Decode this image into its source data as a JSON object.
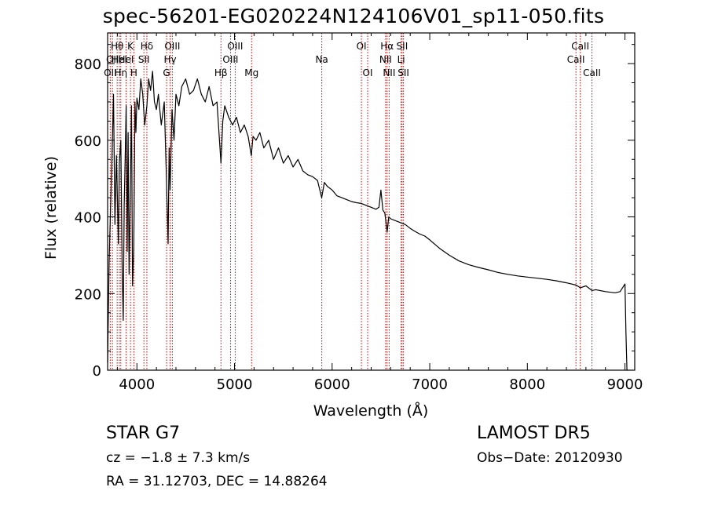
{
  "title": "spec-56201-EG020224N124106V01_sp11-050.fits",
  "footer": {
    "star_type": "STAR    G7",
    "survey": "LAMOST  DR5",
    "cz": "cz = −1.8 ± 7.3 km/s",
    "obs_date": "Obs−Date: 20120930",
    "ra_dec": "RA =  31.12703, DEC =  14.88264"
  },
  "chart_data": {
    "type": "line",
    "title": "spec-56201-EG020224N124106V01_sp11-050.fits",
    "xlabel": "Wavelength (Å)",
    "ylabel": "Flux (relative)",
    "xlim": [
      3700,
      9100
    ],
    "ylim": [
      0,
      880
    ],
    "xticks": [
      4000,
      5000,
      6000,
      7000,
      8000,
      9000
    ],
    "yticks": [
      0,
      200,
      400,
      600,
      800
    ],
    "grid": false,
    "line_color": "#000000",
    "marker_line_color": "#cc0000",
    "series": [
      {
        "x": [
          3700,
          3715,
          3730,
          3745,
          3760,
          3775,
          3790,
          3800,
          3810,
          3820,
          3835,
          3850,
          3860,
          3870,
          3880,
          3890,
          3900,
          3910,
          3920,
          3933,
          3945,
          3955,
          3968,
          3980,
          3990,
          4000,
          4020,
          4040,
          4060,
          4080,
          4102,
          4120,
          4140,
          4160,
          4180,
          4200,
          4220,
          4250,
          4280,
          4300,
          4320,
          4330,
          4340,
          4360,
          4380,
          4400,
          4430,
          4460,
          4500,
          4540,
          4580,
          4620,
          4660,
          4700,
          4740,
          4780,
          4820,
          4861,
          4880,
          4900,
          4940,
          4980,
          5020,
          5060,
          5100,
          5140,
          5172,
          5190,
          5220,
          5260,
          5300,
          5350,
          5400,
          5450,
          5500,
          5550,
          5600,
          5650,
          5700,
          5750,
          5800,
          5850,
          5893,
          5920,
          5950,
          6000,
          6050,
          6100,
          6150,
          6200,
          6250,
          6300,
          6350,
          6400,
          6450,
          6480,
          6500,
          6520,
          6540,
          6563,
          6580,
          6600,
          6650,
          6700,
          6750,
          6800,
          6850,
          6900,
          6950,
          7000,
          7100,
          7200,
          7300,
          7400,
          7500,
          7600,
          7700,
          7800,
          7900,
          8000,
          8100,
          8200,
          8300,
          8400,
          8500,
          8542,
          8600,
          8662,
          8700,
          8800,
          8900,
          8950,
          9000,
          9010,
          9020,
          9030
        ],
        "y": [
          20,
          280,
          420,
          560,
          720,
          380,
          560,
          450,
          330,
          540,
          600,
          250,
          130,
          430,
          560,
          690,
          310,
          620,
          250,
          480,
          690,
          220,
          320,
          700,
          620,
          710,
          680,
          760,
          720,
          640,
          690,
          760,
          730,
          780,
          700,
          680,
          720,
          640,
          700,
          520,
          330,
          580,
          470,
          680,
          600,
          720,
          690,
          740,
          760,
          720,
          730,
          760,
          720,
          700,
          740,
          690,
          700,
          540,
          650,
          690,
          660,
          640,
          660,
          620,
          640,
          610,
          560,
          610,
          600,
          620,
          580,
          600,
          550,
          580,
          540,
          560,
          530,
          550,
          520,
          510,
          505,
          495,
          450,
          490,
          480,
          470,
          455,
          450,
          445,
          440,
          437,
          435,
          430,
          425,
          420,
          425,
          470,
          418,
          410,
          360,
          400,
          395,
          390,
          385,
          380,
          370,
          362,
          355,
          350,
          340,
          318,
          300,
          285,
          275,
          268,
          262,
          255,
          250,
          246,
          243,
          240,
          237,
          233,
          228,
          222,
          215,
          220,
          208,
          210,
          205,
          202,
          205,
          225,
          100,
          0,
          0
        ]
      }
    ],
    "line_markers": [
      {
        "x": 3727,
        "label": "OII",
        "row": 2
      },
      {
        "x": 3750,
        "label": "OII",
        "row": 1
      },
      {
        "x": 3798,
        "label": "Hθ",
        "row": 0
      },
      {
        "x": 3820,
        "label": "HeI",
        "row": 1
      },
      {
        "x": 3835,
        "label": "Hη",
        "row": 2
      },
      {
        "x": 3889,
        "label": "HeI",
        "row": 1
      },
      {
        "x": 3934,
        "label": "K",
        "row": 0
      },
      {
        "x": 3969,
        "label": "H",
        "row": 2
      },
      {
        "x": 4072,
        "label": "SII",
        "row": 1
      },
      {
        "x": 4102,
        "label": "Hδ",
        "row": 0
      },
      {
        "x": 4304,
        "label": "G",
        "row": 2
      },
      {
        "x": 4340,
        "label": "Hγ",
        "row": 1
      },
      {
        "x": 4363,
        "label": "OIII",
        "row": 0
      },
      {
        "x": 4861,
        "label": "Hβ",
        "row": 2
      },
      {
        "x": 4959,
        "label": "OIII",
        "row": 1
      },
      {
        "x": 5007,
        "label": "OIII",
        "row": 0
      },
      {
        "x": 5175,
        "label": "Mg",
        "row": 2
      },
      {
        "x": 5894,
        "label": "Na",
        "row": 1
      },
      {
        "x": 6300,
        "label": "OI",
        "row": 0
      },
      {
        "x": 6364,
        "label": "OI",
        "row": 2
      },
      {
        "x": 6548,
        "label": "NII",
        "row": 1
      },
      {
        "x": 6563,
        "label": "Hα",
        "row": 0
      },
      {
        "x": 6584,
        "label": "NII",
        "row": 2
      },
      {
        "x": 6707,
        "label": "Li",
        "row": 1
      },
      {
        "x": 6717,
        "label": "SII",
        "row": 0
      },
      {
        "x": 6731,
        "label": "SII",
        "row": 2
      },
      {
        "x": 8498,
        "label": "CaII",
        "row": 1
      },
      {
        "x": 8542,
        "label": "CaII",
        "row": 0
      },
      {
        "x": 8662,
        "label": "CaII",
        "row": 2
      }
    ]
  }
}
